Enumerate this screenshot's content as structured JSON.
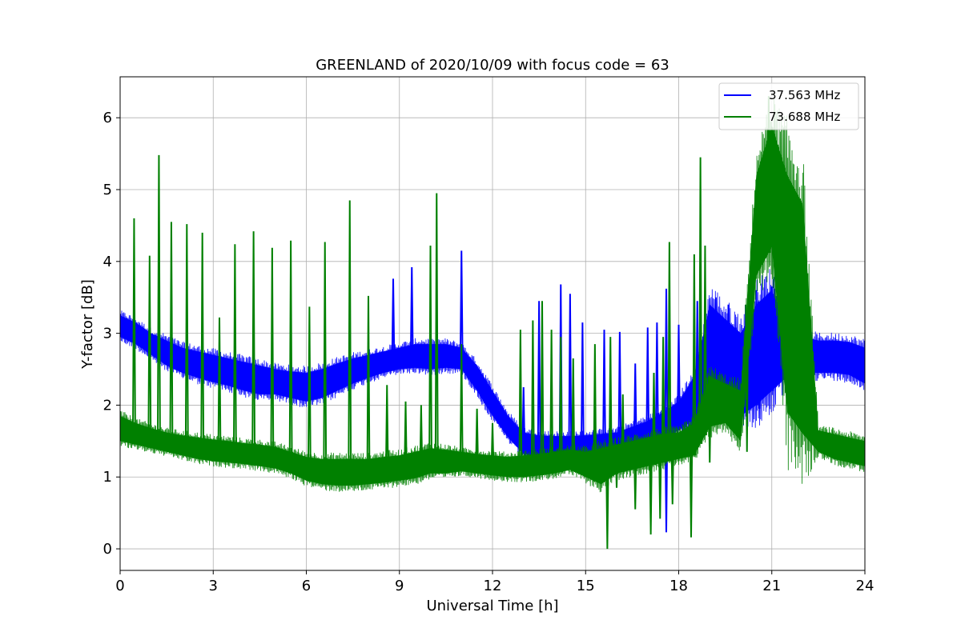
{
  "chart_data": {
    "type": "line",
    "title": "GREENLAND of 2020/10/09 with focus code = 63",
    "xlabel": "Universal Time [h]",
    "ylabel": "Y-factor [dB]",
    "xlim": [
      0,
      24
    ],
    "ylim": [
      -0.3,
      6.57
    ],
    "xticks": [
      0,
      3,
      6,
      9,
      12,
      15,
      18,
      21,
      24
    ],
    "yticks": [
      0,
      1,
      2,
      3,
      4,
      5,
      6
    ],
    "grid": true,
    "legend_position": "top-right",
    "series": [
      {
        "name": "37.563 MHz",
        "color": "#0000ff",
        "band": {
          "x": [
            0,
            0.5,
            1,
            1.5,
            2,
            2.5,
            3,
            3.5,
            4,
            4.5,
            5,
            5.5,
            6,
            6.5,
            7,
            7.5,
            8,
            8.5,
            9,
            9.5,
            10,
            10.5,
            11,
            11.5,
            12,
            12.5,
            13,
            13.5,
            14,
            14.5,
            15,
            15.5,
            16,
            16.5,
            17,
            17.5,
            18,
            18.5,
            19,
            19.5,
            20,
            20.5,
            21,
            21.5,
            22,
            22.5,
            23,
            23.5,
            24
          ],
          "low": [
            2.95,
            2.85,
            2.7,
            2.55,
            2.45,
            2.38,
            2.32,
            2.27,
            2.2,
            2.15,
            2.15,
            2.1,
            2.05,
            2.1,
            2.2,
            2.3,
            2.38,
            2.45,
            2.5,
            2.52,
            2.5,
            2.52,
            2.5,
            2.2,
            1.85,
            1.55,
            1.32,
            1.28,
            1.28,
            1.28,
            1.3,
            1.3,
            1.32,
            1.38,
            1.45,
            1.55,
            1.65,
            1.8,
            2.15,
            2.05,
            1.85,
            2.0,
            2.2,
            2.4,
            2.45,
            2.45,
            2.45,
            2.42,
            2.3
          ],
          "high": [
            3.25,
            3.15,
            3.0,
            2.9,
            2.8,
            2.75,
            2.7,
            2.65,
            2.6,
            2.55,
            2.5,
            2.47,
            2.45,
            2.5,
            2.58,
            2.65,
            2.7,
            2.75,
            2.8,
            2.85,
            2.85,
            2.85,
            2.8,
            2.55,
            2.2,
            1.85,
            1.62,
            1.58,
            1.57,
            1.57,
            1.58,
            1.6,
            1.62,
            1.7,
            1.78,
            1.9,
            2.05,
            2.4,
            3.4,
            3.2,
            3.0,
            3.4,
            3.6,
            3.1,
            2.95,
            2.9,
            2.9,
            2.88,
            2.8
          ]
        },
        "spikes": [
          [
            8.8,
            3.76
          ],
          [
            9.4,
            3.92
          ],
          [
            11.0,
            4.15
          ],
          [
            13.0,
            2.25
          ],
          [
            13.5,
            3.45
          ],
          [
            14.2,
            3.68
          ],
          [
            14.5,
            3.55
          ],
          [
            14.9,
            3.15
          ],
          [
            15.6,
            3.05
          ],
          [
            16.1,
            3.02
          ],
          [
            16.6,
            2.58
          ],
          [
            17.0,
            3.08
          ],
          [
            17.3,
            3.15
          ],
          [
            17.6,
            3.62
          ],
          [
            18.0,
            3.12
          ],
          [
            18.6,
            3.45
          ],
          [
            19.2,
            3.5
          ],
          [
            19.6,
            3.4
          ],
          [
            20.5,
            3.6
          ],
          [
            21.0,
            3.65
          ],
          [
            21.5,
            3.5
          ],
          [
            22.0,
            3.2
          ]
        ],
        "dips": [
          [
            17.6,
            0.23
          ],
          [
            16.8,
            1.55
          ],
          [
            19.8,
            1.9
          ],
          [
            20.6,
            1.95
          ],
          [
            21.8,
            1.9
          ]
        ]
      },
      {
        "name": "73.688 MHz",
        "color": "#008000",
        "band": {
          "x": [
            0,
            0.5,
            1,
            1.5,
            2,
            2.5,
            3,
            3.5,
            4,
            4.5,
            5,
            5.5,
            6,
            6.5,
            7,
            7.5,
            8,
            8.5,
            9,
            9.5,
            10,
            10.5,
            11,
            11.5,
            12,
            12.5,
            13,
            13.5,
            14,
            14.5,
            15,
            15.5,
            16,
            16.5,
            17,
            17.5,
            18,
            18.5,
            19,
            19.5,
            20,
            20.5,
            21,
            21.5,
            22,
            22.5,
            23,
            23.5,
            24
          ],
          "low": [
            1.5,
            1.45,
            1.4,
            1.35,
            1.3,
            1.25,
            1.22,
            1.2,
            1.18,
            1.15,
            1.12,
            1.05,
            0.95,
            0.9,
            0.88,
            0.88,
            0.9,
            0.92,
            0.95,
            0.98,
            1.05,
            1.05,
            1.08,
            1.05,
            1.02,
            1.0,
            1.0,
            1.02,
            1.05,
            1.1,
            1.0,
            0.9,
            1.05,
            1.1,
            1.15,
            1.2,
            1.25,
            1.3,
            1.7,
            1.75,
            1.5,
            3.8,
            4.2,
            1.9,
            1.6,
            1.35,
            1.25,
            1.2,
            1.15
          ],
          "high": [
            1.85,
            1.75,
            1.68,
            1.62,
            1.58,
            1.55,
            1.52,
            1.5,
            1.47,
            1.45,
            1.42,
            1.35,
            1.28,
            1.25,
            1.25,
            1.25,
            1.25,
            1.28,
            1.3,
            1.35,
            1.4,
            1.38,
            1.35,
            1.32,
            1.3,
            1.28,
            1.3,
            1.32,
            1.35,
            1.38,
            1.35,
            1.4,
            1.45,
            1.5,
            1.55,
            1.6,
            1.62,
            1.75,
            2.4,
            2.3,
            2.2,
            5.2,
            5.9,
            5.2,
            4.8,
            1.65,
            1.6,
            1.55,
            1.5
          ]
        },
        "spikes": [
          [
            0.45,
            4.6
          ],
          [
            0.95,
            4.08
          ],
          [
            1.25,
            5.48
          ],
          [
            1.65,
            4.55
          ],
          [
            2.15,
            4.52
          ],
          [
            2.65,
            4.4
          ],
          [
            3.2,
            3.22
          ],
          [
            3.7,
            4.24
          ],
          [
            4.3,
            4.42
          ],
          [
            4.9,
            4.19
          ],
          [
            5.5,
            4.29
          ],
          [
            6.1,
            3.37
          ],
          [
            6.6,
            4.27
          ],
          [
            7.4,
            4.85
          ],
          [
            8.0,
            3.52
          ],
          [
            8.6,
            2.28
          ],
          [
            9.2,
            2.05
          ],
          [
            9.7,
            2.0
          ],
          [
            10.0,
            4.22
          ],
          [
            10.2,
            4.95
          ],
          [
            11.0,
            2.85
          ],
          [
            11.5,
            1.95
          ],
          [
            12.0,
            1.75
          ],
          [
            12.9,
            3.05
          ],
          [
            13.3,
            3.18
          ],
          [
            13.6,
            3.45
          ],
          [
            13.9,
            3.05
          ],
          [
            14.2,
            2.95
          ],
          [
            14.6,
            2.65
          ],
          [
            15.3,
            2.85
          ],
          [
            15.8,
            2.95
          ],
          [
            16.2,
            2.15
          ],
          [
            17.2,
            2.45
          ],
          [
            17.5,
            2.95
          ],
          [
            17.7,
            4.27
          ],
          [
            18.5,
            4.1
          ],
          [
            18.7,
            5.45
          ],
          [
            18.85,
            4.22
          ],
          [
            20.9,
            6.3
          ]
        ],
        "dips": [
          [
            15.7,
            0.0
          ],
          [
            16.0,
            0.85
          ],
          [
            16.6,
            0.55
          ],
          [
            17.1,
            0.2
          ],
          [
            17.4,
            0.42
          ],
          [
            17.8,
            0.62
          ],
          [
            18.4,
            0.16
          ],
          [
            19.0,
            1.2
          ],
          [
            20.2,
            1.35
          ]
        ]
      }
    ]
  }
}
